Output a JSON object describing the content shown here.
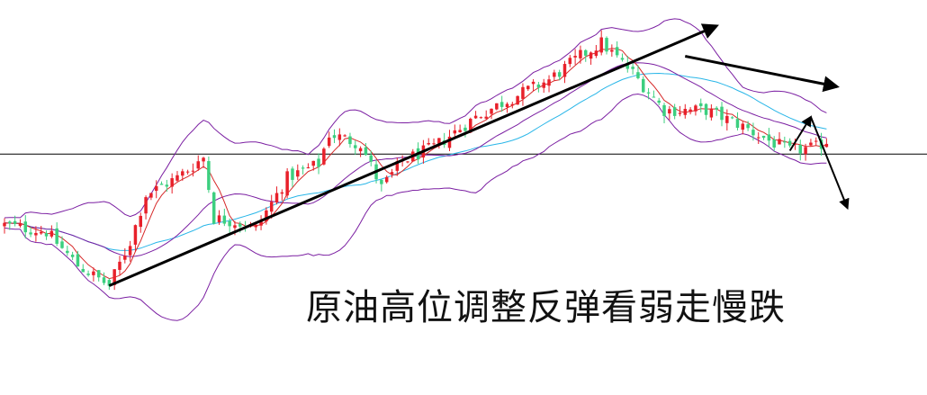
{
  "chart_data": {
    "type": "candlestick",
    "title": "",
    "xlabel": "",
    "ylabel": "",
    "ylim": [
      0,
      100
    ],
    "grid": false,
    "legend": "none",
    "indicators": [
      "bollinger_bands",
      "moving_average_short",
      "moving_average_long"
    ],
    "colors": {
      "up": "#e8202a",
      "down": "#3ccf7f",
      "bollinger": "#7b1fa2",
      "ma_short": "#d62828",
      "ma_long": "#29b6e8",
      "trendline": "#000000",
      "reference_line": "#000000"
    },
    "reference_level": 57,
    "trendlines": [
      {
        "name": "ascending-support",
        "from": [
          20,
          18
        ],
        "to": [
          136,
          95
        ]
      },
      {
        "name": "descending-resistance",
        "from": [
          130,
          86
        ],
        "to": [
          159,
          77
        ]
      }
    ],
    "arrows": [
      {
        "name": "rebound",
        "from": [
          150,
          58
        ],
        "to": [
          154,
          68
        ]
      },
      {
        "name": "fall",
        "from": [
          154,
          68
        ],
        "to": [
          161,
          41
        ]
      }
    ],
    "price_path": [
      [
        0,
        36
      ],
      [
        8,
        34
      ],
      [
        14,
        24
      ],
      [
        20,
        18
      ],
      [
        24,
        31
      ],
      [
        27,
        45
      ],
      [
        33,
        50
      ],
      [
        38,
        56
      ],
      [
        40,
        38
      ],
      [
        44,
        37
      ],
      [
        48,
        35
      ],
      [
        54,
        50
      ],
      [
        60,
        54
      ],
      [
        62,
        63
      ],
      [
        68,
        60
      ],
      [
        72,
        47
      ],
      [
        76,
        55
      ],
      [
        82,
        59
      ],
      [
        90,
        68
      ],
      [
        96,
        73
      ],
      [
        104,
        79
      ],
      [
        110,
        86
      ],
      [
        114,
        90
      ],
      [
        120,
        81
      ],
      [
        126,
        70
      ],
      [
        134,
        70
      ],
      [
        140,
        66
      ],
      [
        146,
        61
      ],
      [
        150,
        58
      ],
      [
        155,
        59
      ],
      [
        157,
        61
      ]
    ]
  },
  "annotation": {
    "text": "原油高位调整反弹看弱走慢跌"
  }
}
